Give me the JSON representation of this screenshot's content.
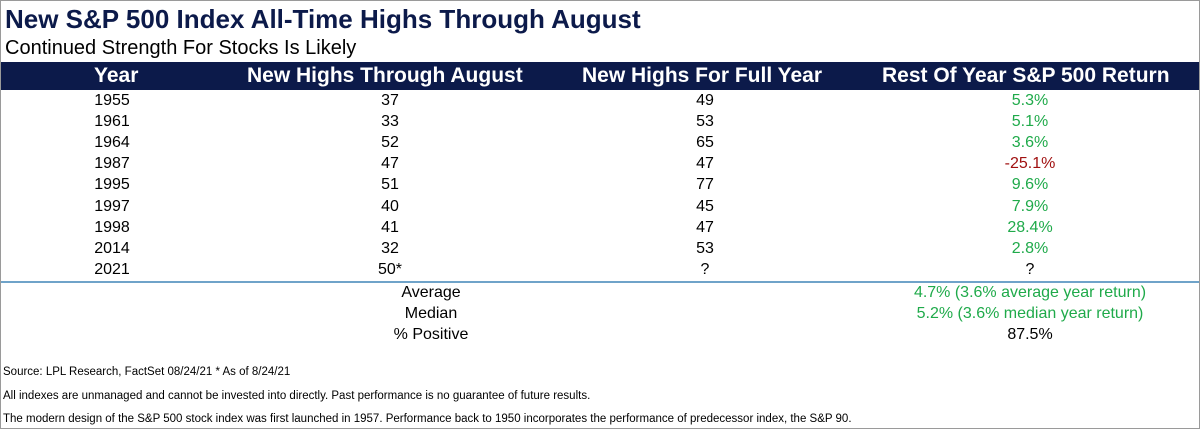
{
  "title": "New S&P 500 Index All-Time Highs Through August",
  "subtitle": "Continued Strength For Stocks Is Likely",
  "colors": {
    "header_bg": "#0c1a4a",
    "header_text": "#ffffff",
    "positive": "#1faa4a",
    "negative": "#a01010",
    "neutral": "#000000",
    "separator": "#6fa3c9"
  },
  "chart_data": {
    "type": "table",
    "columns": [
      "Year",
      "New Highs Through August",
      "New Highs For Full Year",
      "Rest Of Year S&P 500 Return"
    ],
    "rows": [
      {
        "year": "1955",
        "through_august": "37",
        "full_year": "49",
        "rest_of_year_return": "5.3%",
        "sign": "positive"
      },
      {
        "year": "1961",
        "through_august": "33",
        "full_year": "53",
        "rest_of_year_return": "5.1%",
        "sign": "positive"
      },
      {
        "year": "1964",
        "through_august": "52",
        "full_year": "65",
        "rest_of_year_return": "3.6%",
        "sign": "positive"
      },
      {
        "year": "1987",
        "through_august": "47",
        "full_year": "47",
        "rest_of_year_return": "-25.1%",
        "sign": "negative"
      },
      {
        "year": "1995",
        "through_august": "51",
        "full_year": "77",
        "rest_of_year_return": "9.6%",
        "sign": "positive"
      },
      {
        "year": "1997",
        "through_august": "40",
        "full_year": "45",
        "rest_of_year_return": "7.9%",
        "sign": "positive"
      },
      {
        "year": "1998",
        "through_august": "41",
        "full_year": "47",
        "rest_of_year_return": "28.4%",
        "sign": "positive"
      },
      {
        "year": "2014",
        "through_august": "32",
        "full_year": "53",
        "rest_of_year_return": "2.8%",
        "sign": "positive"
      },
      {
        "year": "2021",
        "through_august": "50*",
        "full_year": "?",
        "rest_of_year_return": "?",
        "sign": "neutral"
      }
    ],
    "summary": [
      {
        "label": "Average",
        "value": "4.7% (3.6% average year return)",
        "sign": "positive"
      },
      {
        "label": "Median",
        "value": "5.2% (3.6% median year return)",
        "sign": "positive"
      },
      {
        "label": "% Positive",
        "value": "87.5%",
        "sign": "neutral"
      }
    ]
  },
  "notes": [
    "Source: LPL Research, FactSet 08/24/21    * As of 8/24/21",
    "All indexes are unmanaged and cannot be invested into directly. Past performance is no guarantee of future results.",
    "The modern design of the S&P 500 stock index was first launched in 1957. Performance back to 1950 incorporates the performance of predecessor index, the S&P 90."
  ]
}
